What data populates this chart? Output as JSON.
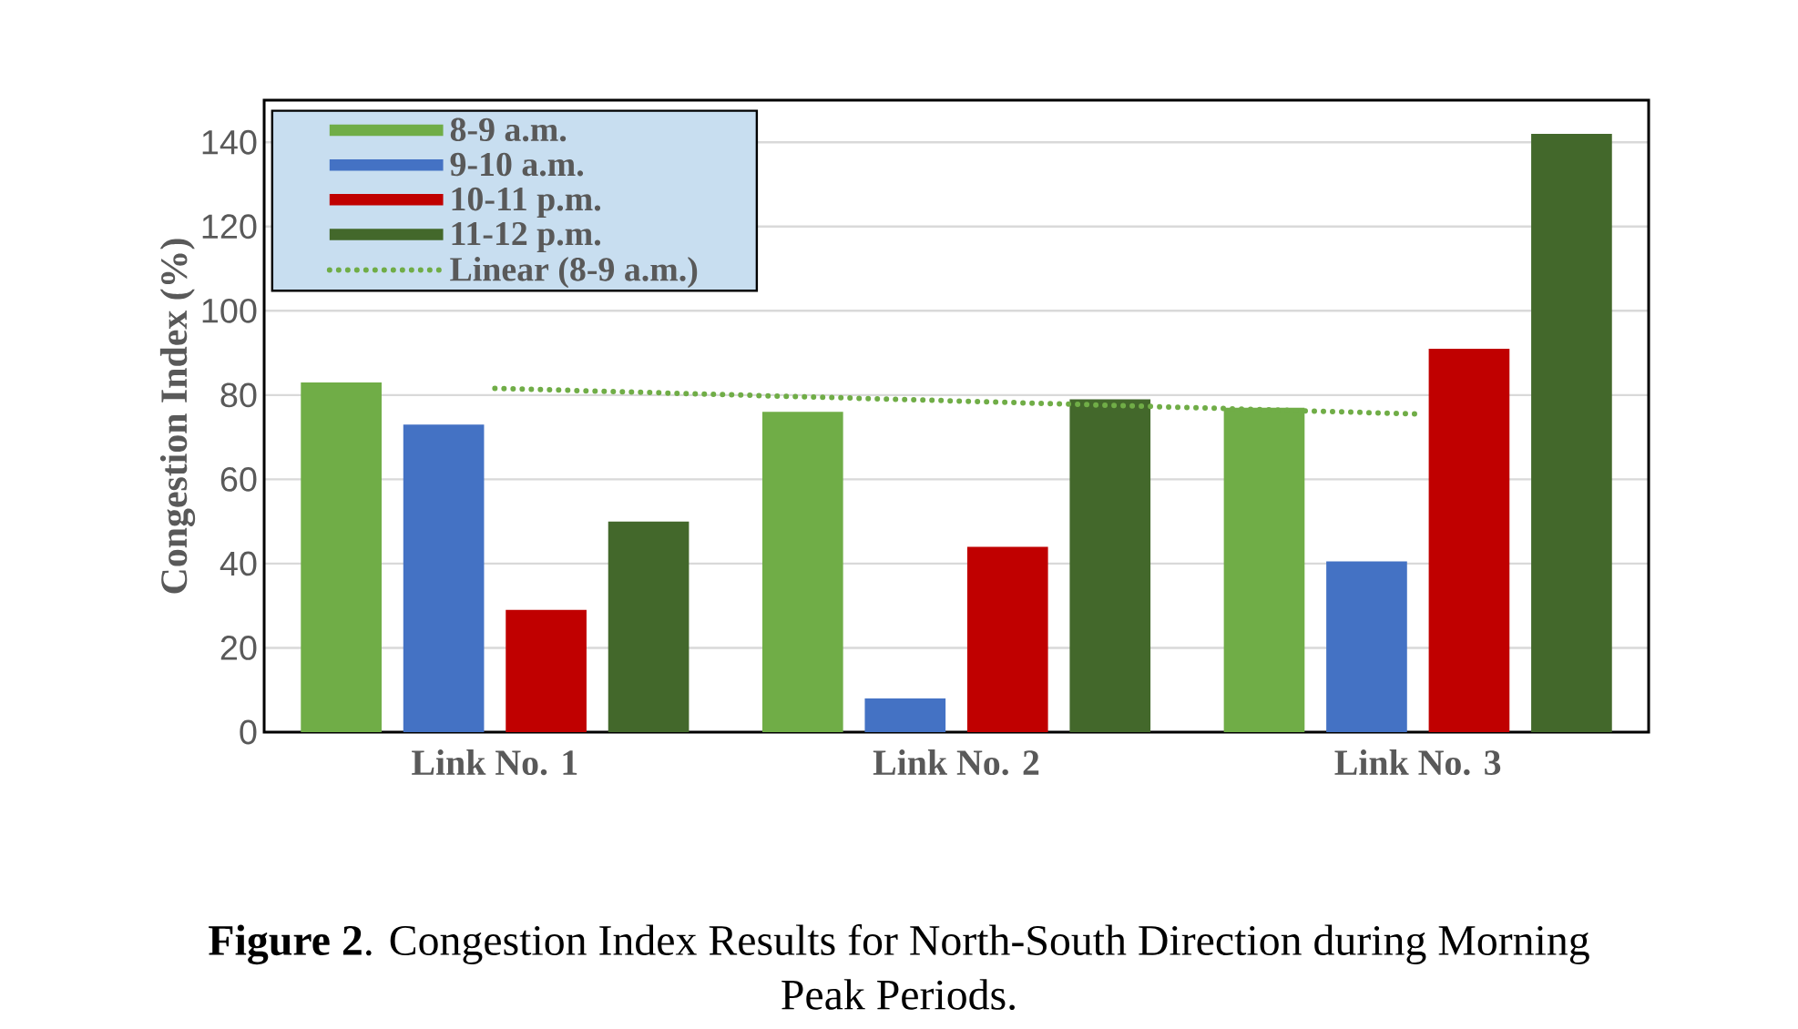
{
  "chart_data": {
    "type": "bar",
    "ylabel": "Congestion Index (%)",
    "categories": [
      "Link No. 1",
      "Link No. 2",
      "Link No. 3"
    ],
    "ylim": [
      0,
      150
    ],
    "yticks": [
      0,
      20,
      40,
      60,
      80,
      100,
      120,
      140
    ],
    "grid": "y",
    "legend": "top left",
    "annotations": [
      "**Figure 2**. Congestion Index Results for North-South Direction during Morning Peak Periods."
    ],
    "series": [
      {
        "name": "8-9 a.m.",
        "color": "#70ad47",
        "values": [
          83,
          76,
          77
        ]
      },
      {
        "name": "9-10 a.m.",
        "color": "#4472c4",
        "values": [
          73,
          8,
          40.5
        ]
      },
      {
        "name": "10-11 p.m.",
        "color": "#c00000",
        "values": [
          29,
          44,
          91
        ]
      },
      {
        "name": "11-12 p.m.",
        "color": "#43682b",
        "values": [
          50,
          79,
          142
        ]
      },
      {
        "name": "Linear (8-9 a.m.)",
        "type": "line",
        "color": "#70ad47",
        "values": [
          81.6,
          78.6,
          75.5
        ],
        "line_style": "dotted",
        "marker": "none"
      }
    ]
  }
}
